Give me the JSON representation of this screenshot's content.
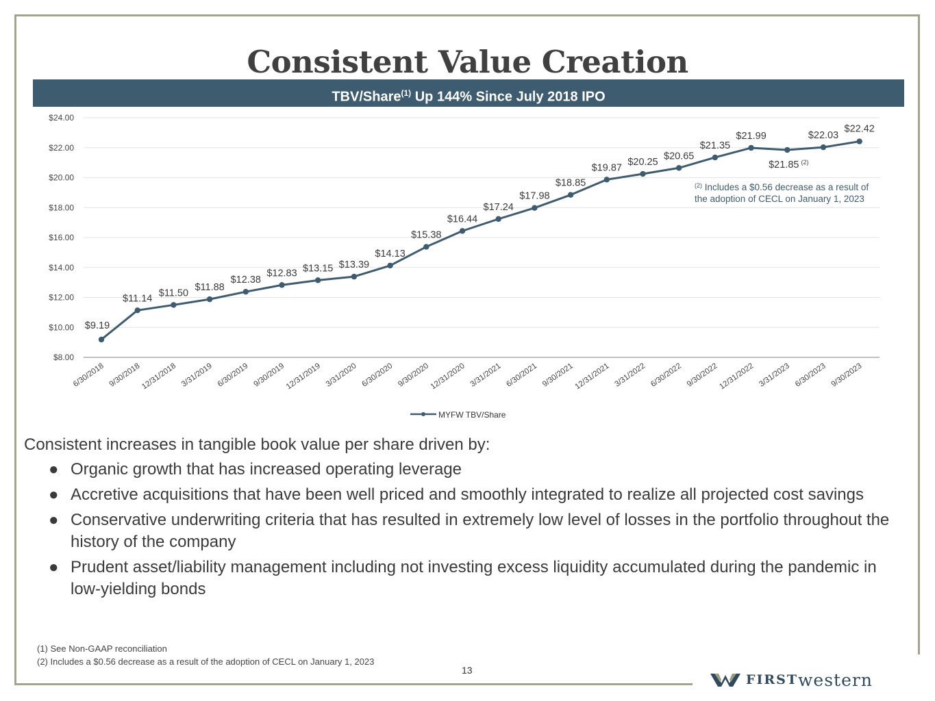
{
  "title": "Consistent Value Creation",
  "banner": {
    "text": "TBV/Share",
    "sup": "(1)",
    "text_after": " Up 144% Since July 2018 IPO"
  },
  "chart_data": {
    "type": "line",
    "categories": [
      "6/30/2018",
      "9/30/2018",
      "12/31/2018",
      "3/31/2019",
      "6/30/2019",
      "9/30/2019",
      "12/31/2019",
      "3/31/2020",
      "6/30/2020",
      "9/30/2020",
      "12/31/2020",
      "3/31/2021",
      "6/30/2021",
      "9/30/2021",
      "12/31/2021",
      "3/31/2022",
      "6/30/2022",
      "9/30/2022",
      "12/31/2022",
      "3/31/2023",
      "6/30/2023",
      "9/30/2023"
    ],
    "series": [
      {
        "name": "MYFW TBV/Share",
        "values": [
          9.19,
          11.14,
          11.5,
          11.88,
          12.38,
          12.83,
          13.15,
          13.39,
          14.13,
          15.38,
          16.44,
          17.24,
          17.98,
          18.85,
          19.87,
          20.25,
          20.65,
          21.35,
          21.99,
          21.85,
          22.03,
          22.42
        ]
      }
    ],
    "data_labels": [
      "$9.19",
      "$11.14",
      "$11.50",
      "$11.88",
      "$12.38",
      "$12.83",
      "$13.15",
      "$13.39",
      "$14.13",
      "$15.38",
      "$16.44",
      "$17.24",
      "$17.98",
      "$18.85",
      "$19.87",
      "$20.25",
      "$20.65",
      "$21.35",
      "$21.99",
      "$21.85",
      "$22.03",
      "$22.42"
    ],
    "label_note_index": 19,
    "label_note": "(2)",
    "yticks": [
      "$8.00",
      "$10.00",
      "$12.00",
      "$14.00",
      "$16.00",
      "$18.00",
      "$20.00",
      "$22.00",
      "$24.00"
    ],
    "ylim": [
      8,
      24
    ],
    "grid": true,
    "legend": "bottom",
    "annotation": {
      "sup": "(2)",
      "line1": " Includes a $0.56 decrease as a result of",
      "line2": "the adoption of CECL on January 1, 2023"
    },
    "colors": {
      "line": "#3d5c70",
      "grid": "#e3e3e3",
      "label": "#3a3a3a",
      "annotation": "#3d5c70"
    }
  },
  "body": {
    "lead": "Consistent increases in tangible book value per share driven by:",
    "bullets": [
      "Organic growth that has increased operating leverage",
      "Accretive acquisitions that have been well priced and smoothly integrated to realize all projected cost savings",
      "Conservative underwriting criteria that has resulted in extremely low level of losses in the portfolio throughout the history of the company",
      "Prudent asset/liability management including not investing excess liquidity accumulated during the pandemic in low-yielding bonds"
    ]
  },
  "footnotes": [
    "(1) See Non-GAAP reconciliation",
    "(2) Includes a $0.56 decrease as a result of the adoption of CECL on January 1, 2023"
  ],
  "page_number": "13",
  "logo": {
    "text_a": "FIRST",
    "text_b": "western"
  }
}
